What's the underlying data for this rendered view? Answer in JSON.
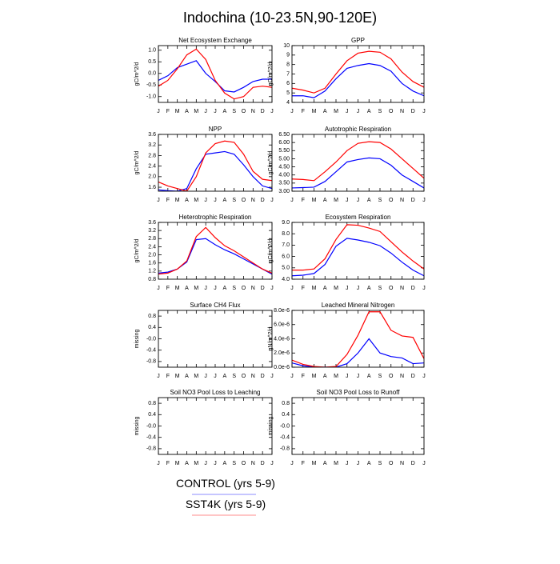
{
  "title": "Indochina (10-23.5N,90-120E)",
  "legend": [
    {
      "name": "CONTROL (yrs 5-9)",
      "color": "#0000ff"
    },
    {
      "name": "SST4K (yrs 5-9)",
      "color": "#ff0000"
    }
  ],
  "chart_data": [
    {
      "type": "line",
      "title": "Net Ecosystem Exchange",
      "ylabel": "gC/m^2/d",
      "categories": [
        "J",
        "F",
        "M",
        "A",
        "M",
        "J",
        "J",
        "A",
        "S",
        "O",
        "N",
        "D",
        "J"
      ],
      "ylim": [
        -1.25,
        1.2
      ],
      "yticks": [
        {
          "value": -1,
          "label": "-1.0"
        },
        -0.5,
        {
          "value": 0,
          "label": "0.0"
        },
        0.5,
        {
          "value": 1,
          "label": "1.0"
        }
      ],
      "series": [
        {
          "values": [
            -0.3,
            -0.1,
            0.25,
            0.4,
            0.55,
            0.0,
            -0.35,
            -0.75,
            -0.8,
            -0.6,
            -0.35,
            -0.25,
            -0.25
          ]
        },
        {
          "values": [
            -0.55,
            -0.3,
            0.2,
            0.8,
            1.05,
            0.6,
            -0.3,
            -0.85,
            -1.1,
            -1.0,
            -0.6,
            -0.55,
            -0.6
          ]
        }
      ]
    },
    {
      "type": "line",
      "title": "GPP",
      "ylabel": "gC/m^2/d",
      "categories": [
        "J",
        "F",
        "M",
        "A",
        "M",
        "J",
        "J",
        "A",
        "S",
        "O",
        "N",
        "D",
        "J"
      ],
      "ylim": [
        4,
        10
      ],
      "yticks": [
        4,
        5,
        6,
        7,
        8,
        9,
        10
      ],
      "series": [
        {
          "values": [
            4.7,
            4.7,
            4.5,
            5.2,
            6.5,
            7.6,
            7.9,
            8.1,
            7.9,
            7.3,
            6.0,
            5.2,
            4.7
          ]
        },
        {
          "values": [
            5.5,
            5.3,
            5.0,
            5.5,
            7.0,
            8.4,
            9.2,
            9.4,
            9.3,
            8.6,
            7.2,
            6.2,
            5.6
          ]
        }
      ]
    },
    {
      "type": "line",
      "title": "NPP",
      "ylabel": "gC/m^2/d",
      "categories": [
        "J",
        "F",
        "M",
        "A",
        "M",
        "J",
        "J",
        "A",
        "S",
        "O",
        "N",
        "D",
        "J"
      ],
      "ylim": [
        1.45,
        3.6
      ],
      "yticks": [
        1.6,
        {
          "value": 2,
          "label": "2.0"
        },
        2.4,
        2.8,
        3.2,
        3.6
      ],
      "series": [
        {
          "values": [
            1.5,
            1.47,
            1.45,
            1.55,
            2.3,
            2.85,
            2.9,
            2.95,
            2.85,
            2.45,
            2.0,
            1.65,
            1.55
          ]
        },
        {
          "values": [
            1.8,
            1.65,
            1.55,
            1.45,
            2.0,
            2.9,
            3.25,
            3.35,
            3.3,
            2.85,
            2.2,
            1.9,
            1.85
          ]
        }
      ]
    },
    {
      "type": "line",
      "title": "Autotrophic Respiration",
      "ylabel": "gC/m^2/d",
      "categories": [
        "J",
        "F",
        "M",
        "A",
        "M",
        "J",
        "J",
        "A",
        "S",
        "O",
        "N",
        "D",
        "J"
      ],
      "ylim": [
        3,
        6.5
      ],
      "yticks": [
        {
          "value": 3,
          "label": "3.00"
        },
        {
          "value": 3.5,
          "label": "3.50"
        },
        {
          "value": 4,
          "label": "4.00"
        },
        {
          "value": 4.5,
          "label": "4.50"
        },
        {
          "value": 5,
          "label": "5.00"
        },
        {
          "value": 5.5,
          "label": "5.50"
        },
        {
          "value": 6,
          "label": "6.00"
        },
        {
          "value": 6.5,
          "label": "6.50"
        }
      ],
      "series": [
        {
          "values": [
            3.2,
            3.22,
            3.25,
            3.6,
            4.2,
            4.8,
            4.95,
            5.05,
            5.0,
            4.6,
            4.0,
            3.6,
            3.2
          ]
        },
        {
          "values": [
            3.75,
            3.72,
            3.65,
            4.2,
            4.8,
            5.5,
            5.95,
            6.05,
            6.0,
            5.6,
            5.0,
            4.4,
            3.8
          ]
        }
      ]
    },
    {
      "type": "line",
      "title": "Heterotrophic Respiration",
      "ylabel": "gC/m^2/d",
      "categories": [
        "J",
        "F",
        "M",
        "A",
        "M",
        "J",
        "J",
        "A",
        "S",
        "O",
        "N",
        "D",
        "J"
      ],
      "ylim": [
        0.8,
        3.6
      ],
      "yticks": [
        0.8,
        1.2,
        1.6,
        {
          "value": 2,
          "label": "2.0"
        },
        2.4,
        2.8,
        3.2,
        3.6
      ],
      "series": [
        {
          "values": [
            1.1,
            1.15,
            1.3,
            1.65,
            2.75,
            2.8,
            2.5,
            2.25,
            2.05,
            1.8,
            1.55,
            1.3,
            1.05
          ]
        },
        {
          "values": [
            1.05,
            1.1,
            1.3,
            1.7,
            2.9,
            3.35,
            2.85,
            2.45,
            2.2,
            1.9,
            1.6,
            1.3,
            1.1
          ]
        }
      ]
    },
    {
      "type": "line",
      "title": "Ecosystem Respiration",
      "ylabel": "gC/m^2/d",
      "categories": [
        "J",
        "F",
        "M",
        "A",
        "M",
        "J",
        "J",
        "A",
        "S",
        "O",
        "N",
        "D",
        "J"
      ],
      "ylim": [
        4,
        9
      ],
      "yticks": [
        {
          "value": 4,
          "label": "4.0"
        },
        {
          "value": 5,
          "label": "5.0"
        },
        {
          "value": 6,
          "label": "6.0"
        },
        {
          "value": 7,
          "label": "7.0"
        },
        {
          "value": 8,
          "label": "8.0"
        },
        {
          "value": 9,
          "label": "9.0"
        }
      ],
      "series": [
        {
          "values": [
            4.3,
            4.35,
            4.5,
            5.3,
            6.9,
            7.6,
            7.45,
            7.25,
            6.95,
            6.3,
            5.5,
            4.8,
            4.3
          ]
        },
        {
          "values": [
            4.8,
            4.8,
            4.9,
            5.8,
            7.5,
            8.8,
            8.75,
            8.5,
            8.2,
            7.3,
            6.4,
            5.6,
            4.9
          ]
        }
      ]
    },
    {
      "type": "line",
      "title": "Surface CH4 Flux",
      "ylabel": "missing",
      "categories": [
        "J",
        "F",
        "M",
        "A",
        "M",
        "J",
        "J",
        "A",
        "S",
        "O",
        "N",
        "D",
        "J"
      ],
      "ylim": [
        -1,
        1
      ],
      "yticks": [
        -0.8,
        -0.4,
        {
          "value": 0,
          "label": "-0.0"
        },
        0.4,
        0.8
      ],
      "series": []
    },
    {
      "type": "line",
      "title": "Leached Mineral Nitrogen",
      "ylabel": "gN/m^2/d",
      "categories": [
        "J",
        "F",
        "M",
        "A",
        "M",
        "J",
        "J",
        "A",
        "S",
        "O",
        "N",
        "D",
        "J"
      ],
      "ylim": [
        0,
        8e-06
      ],
      "yticks": [
        {
          "value": 0,
          "label": "0.0e-6"
        },
        {
          "value": 2e-06,
          "label": "2.0e-6"
        },
        {
          "value": 4e-06,
          "label": "4.0e-6"
        },
        {
          "value": 6e-06,
          "label": "6.0e-6"
        },
        {
          "value": 8e-06,
          "label": "8.0e-6"
        }
      ],
      "series": [
        {
          "values": [
            6e-07,
            2e-07,
            0,
            0,
            0,
            5e-07,
            2e-06,
            4e-06,
            2e-06,
            1.5e-06,
            1.3e-06,
            5e-07,
            6e-07
          ]
        },
        {
          "values": [
            1e-06,
            4e-07,
            1e-07,
            0,
            1e-07,
            1.8e-06,
            4.5e-06,
            7.8e-06,
            7.8e-06,
            5.2e-06,
            4.4e-06,
            4.2e-06,
            1.2e-06
          ]
        }
      ]
    },
    {
      "type": "line",
      "title": "Soil NO3 Pool Loss to Leaching",
      "ylabel": "missing",
      "categories": [
        "J",
        "F",
        "M",
        "A",
        "M",
        "J",
        "J",
        "A",
        "S",
        "O",
        "N",
        "D",
        "J"
      ],
      "ylim": [
        -1,
        1
      ],
      "yticks": [
        -0.8,
        -0.4,
        {
          "value": 0,
          "label": "-0.0"
        },
        0.4,
        0.8
      ],
      "series": []
    },
    {
      "type": "line",
      "title": "Soil NO3 Pool Loss to Runoff",
      "ylabel": "missing",
      "categories": [
        "J",
        "F",
        "M",
        "A",
        "M",
        "J",
        "J",
        "A",
        "S",
        "O",
        "N",
        "D",
        "J"
      ],
      "ylim": [
        -1,
        1
      ],
      "yticks": [
        -0.8,
        -0.4,
        {
          "value": 0,
          "label": "-0.0"
        },
        0.4,
        0.8
      ],
      "series": []
    }
  ]
}
